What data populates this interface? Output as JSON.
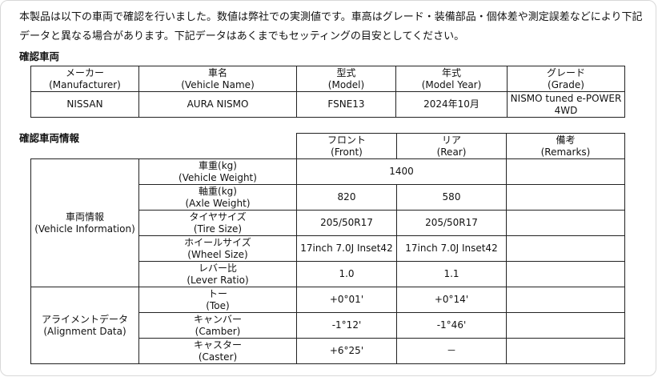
{
  "intro": "本製品は以下の車両で確認を行いました。数値は弊社での実測値です。車高はグレード・装備部品・個体差や測定誤差などにより下記データと異なる場合があります。下記データはあくまでもセッティングの目安としてください。",
  "vehicle": {
    "heading": "確認車両",
    "headers": [
      {
        "ja": "メーカー",
        "en": "(Manufacturer)"
      },
      {
        "ja": "車名",
        "en": "(Vehicle Name)"
      },
      {
        "ja": "型式",
        "en": "(Model)"
      },
      {
        "ja": "年式",
        "en": "(Model Year)"
      },
      {
        "ja": "グレード",
        "en": "(Grade)"
      }
    ],
    "values": [
      "NISSAN",
      "AURA NISMO",
      "FSNE13",
      "2024年10月",
      "NISMO tuned e-POWER 4WD"
    ]
  },
  "info": {
    "heading": "確認車両情報",
    "headers": [
      {
        "ja": "フロント",
        "en": "(Front)"
      },
      {
        "ja": "リア",
        "en": "(Rear)"
      },
      {
        "ja": "備考",
        "en": "(Remarks)"
      }
    ],
    "groups": [
      {
        "ja": "車両情報",
        "en": "(Vehicle Information)"
      },
      {
        "ja": "アライメントデータ",
        "en": "(Alignment Data)"
      }
    ],
    "rows": [
      {
        "ja": "車重(kg)",
        "en": "(Vehicle Weight)",
        "combined": "1400",
        "remarks": ""
      },
      {
        "ja": "軸重(kg)",
        "en": "(Axle Weight)",
        "front": "820",
        "rear": "580",
        "remarks": ""
      },
      {
        "ja": "タイヤサイズ",
        "en": "(Tire Size)",
        "front": "205/50R17",
        "rear": "205/50R17",
        "remarks": ""
      },
      {
        "ja": "ホイールサイズ",
        "en": "(Wheel Size)",
        "front": "17inch 7.0J Inset42",
        "rear": "17inch 7.0J Inset42",
        "remarks": ""
      },
      {
        "ja": "レバー比",
        "en": "(Lever Ratio)",
        "front": "1.0",
        "rear": "1.1",
        "remarks": ""
      },
      {
        "ja": "トー",
        "en": "(Toe)",
        "front": "+0°01'",
        "rear": "+0°14'",
        "remarks": ""
      },
      {
        "ja": "キャンバー",
        "en": "(Camber)",
        "front": "-1°12'",
        "rear": "-1°46'",
        "remarks": ""
      },
      {
        "ja": "キャスター",
        "en": "(Caster)",
        "front": "+6°25'",
        "rear": "－",
        "remarks": ""
      }
    ]
  }
}
